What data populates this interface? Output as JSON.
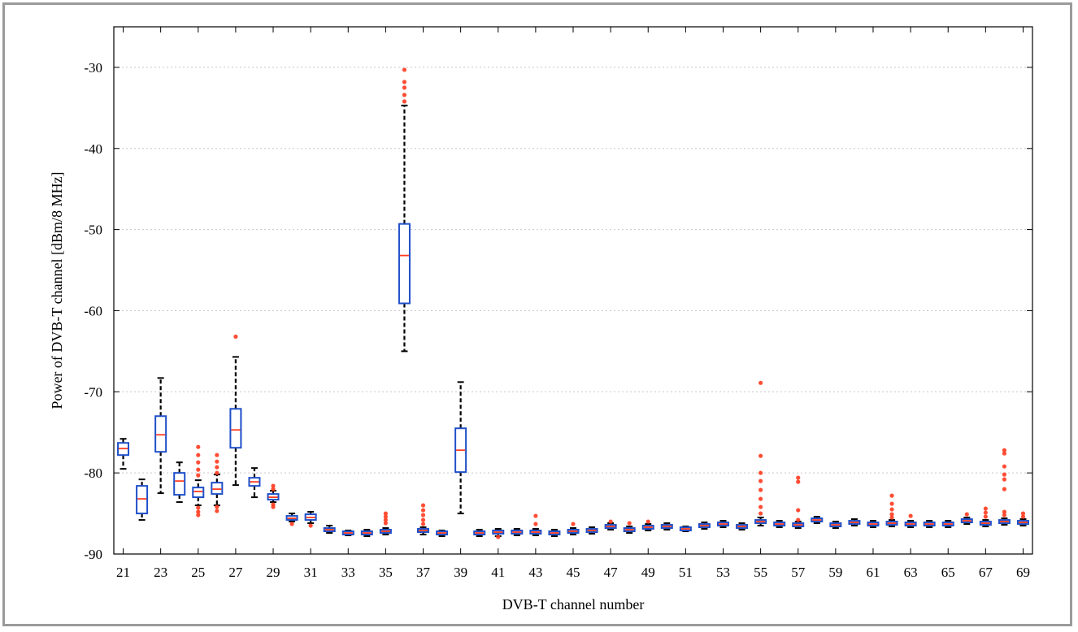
{
  "chart_data": {
    "type": "box",
    "xlabel": "DVB-T channel number",
    "ylabel": "Power of DVB-T channel [dBm/8 MHz]",
    "ylim": [
      -90,
      -25
    ],
    "xlim": [
      20.5,
      69.5
    ],
    "yticks": [
      -30,
      -40,
      -50,
      -60,
      -70,
      -80,
      -90
    ],
    "xticks": [
      21,
      23,
      25,
      27,
      29,
      31,
      33,
      35,
      37,
      39,
      41,
      43,
      45,
      47,
      49,
      51,
      53,
      55,
      57,
      59,
      61,
      63,
      65,
      67,
      69
    ],
    "grid": true,
    "colors": {
      "box": "#1f4fc8",
      "median": "#ff3b1f",
      "outlier": "#ff3b1f",
      "whisker": "#000000"
    },
    "boxes": [
      {
        "channel": 21,
        "q1": -77.8,
        "median": -77.0,
        "q3": -76.3,
        "wlo": -79.5,
        "whi": -75.8,
        "outliers": []
      },
      {
        "channel": 22,
        "q1": -85.0,
        "median": -83.2,
        "q3": -81.6,
        "wlo": -85.8,
        "whi": -80.8,
        "outliers": []
      },
      {
        "channel": 23,
        "q1": -77.4,
        "median": -75.3,
        "q3": -73.0,
        "wlo": -82.5,
        "whi": -68.3,
        "outliers": []
      },
      {
        "channel": 24,
        "q1": -82.7,
        "median": -81.0,
        "q3": -80.0,
        "wlo": -83.6,
        "whi": -78.7,
        "outliers": []
      },
      {
        "channel": 25,
        "q1": -83.0,
        "median": -82.3,
        "q3": -81.8,
        "wlo": -84.0,
        "whi": -80.9,
        "outliers": [
          -76.8,
          -77.8,
          -78.7,
          -79.6,
          -80.3,
          -84.3,
          -84.8,
          -85.2
        ]
      },
      {
        "channel": 26,
        "q1": -82.6,
        "median": -82.0,
        "q3": -81.2,
        "wlo": -84.0,
        "whi": -80.2,
        "outliers": [
          -77.8,
          -78.6,
          -79.3,
          -80.0,
          -84.2,
          -84.7
        ]
      },
      {
        "channel": 27,
        "q1": -76.9,
        "median": -74.7,
        "q3": -72.1,
        "wlo": -81.5,
        "whi": -65.7,
        "outliers": [
          -63.2
        ]
      },
      {
        "channel": 28,
        "q1": -81.6,
        "median": -81.1,
        "q3": -80.6,
        "wlo": -83.0,
        "whi": -79.4,
        "outliers": []
      },
      {
        "channel": 29,
        "q1": -83.3,
        "median": -83.0,
        "q3": -82.6,
        "wlo": -83.6,
        "whi": -82.2,
        "outliers": [
          -81.6,
          -82.0,
          -83.9,
          -84.2
        ]
      },
      {
        "channel": 30,
        "q1": -85.8,
        "median": -85.6,
        "q3": -85.3,
        "wlo": -86.0,
        "whi": -85.0,
        "outliers": [
          -86.3
        ]
      },
      {
        "channel": 31,
        "q1": -85.8,
        "median": -85.5,
        "q3": -85.1,
        "wlo": -86.2,
        "whi": -84.8,
        "outliers": [
          -86.5
        ]
      },
      {
        "channel": 32,
        "q1": -87.2,
        "median": -87.0,
        "q3": -86.8,
        "wlo": -87.4,
        "whi": -86.5,
        "outliers": []
      },
      {
        "channel": 33,
        "q1": -87.6,
        "median": -87.4,
        "q3": -87.2,
        "wlo": -87.7,
        "whi": -87.1,
        "outliers": []
      },
      {
        "channel": 34,
        "q1": -87.6,
        "median": -87.4,
        "q3": -87.2,
        "wlo": -87.8,
        "whi": -87.0,
        "outliers": []
      },
      {
        "channel": 35,
        "q1": -87.4,
        "median": -87.2,
        "q3": -87.0,
        "wlo": -87.6,
        "whi": -86.8,
        "outliers": [
          -85.0,
          -85.4,
          -85.8,
          -86.2
        ]
      },
      {
        "channel": 36,
        "q1": -59.1,
        "median": -53.2,
        "q3": -49.3,
        "wlo": -65.0,
        "whi": -34.7,
        "outliers": [
          -30.3,
          -31.8,
          -32.5,
          -33.4,
          -34.2
        ]
      },
      {
        "channel": 37,
        "q1": -87.3,
        "median": -87.1,
        "q3": -86.9,
        "wlo": -87.6,
        "whi": -86.7,
        "outliers": [
          -84.0,
          -84.6,
          -85.2,
          -85.8,
          -86.3
        ]
      },
      {
        "channel": 38,
        "q1": -87.6,
        "median": -87.4,
        "q3": -87.2,
        "wlo": -87.8,
        "whi": -87.1,
        "outliers": []
      },
      {
        "channel": 39,
        "q1": -79.9,
        "median": -77.2,
        "q3": -74.5,
        "wlo": -85.0,
        "whi": -68.8,
        "outliers": []
      },
      {
        "channel": 40,
        "q1": -87.6,
        "median": -87.4,
        "q3": -87.2,
        "wlo": -87.8,
        "whi": -87.0,
        "outliers": []
      },
      {
        "channel": 41,
        "q1": -87.5,
        "median": -87.3,
        "q3": -87.1,
        "wlo": -87.8,
        "whi": -86.9,
        "outliers": [
          -87.9
        ]
      },
      {
        "channel": 42,
        "q1": -87.5,
        "median": -87.3,
        "q3": -87.1,
        "wlo": -87.7,
        "whi": -86.9,
        "outliers": []
      },
      {
        "channel": 43,
        "q1": -87.5,
        "median": -87.3,
        "q3": -87.1,
        "wlo": -87.7,
        "whi": -86.9,
        "outliers": [
          -85.3,
          -86.3
        ]
      },
      {
        "channel": 44,
        "q1": -87.6,
        "median": -87.4,
        "q3": -87.2,
        "wlo": -87.8,
        "whi": -87.0,
        "outliers": []
      },
      {
        "channel": 45,
        "q1": -87.4,
        "median": -87.2,
        "q3": -87.0,
        "wlo": -87.6,
        "whi": -86.8,
        "outliers": [
          -86.3
        ]
      },
      {
        "channel": 46,
        "q1": -87.3,
        "median": -87.1,
        "q3": -86.9,
        "wlo": -87.5,
        "whi": -86.7,
        "outliers": []
      },
      {
        "channel": 47,
        "q1": -86.8,
        "median": -86.6,
        "q3": -86.4,
        "wlo": -87.0,
        "whi": -86.2,
        "outliers": [
          -86.0
        ]
      },
      {
        "channel": 48,
        "q1": -87.2,
        "median": -87.0,
        "q3": -86.8,
        "wlo": -87.4,
        "whi": -86.6,
        "outliers": [
          -86.2
        ]
      },
      {
        "channel": 49,
        "q1": -86.9,
        "median": -86.7,
        "q3": -86.5,
        "wlo": -87.1,
        "whi": -86.3,
        "outliers": [
          -86.0
        ]
      },
      {
        "channel": 50,
        "q1": -86.8,
        "median": -86.6,
        "q3": -86.4,
        "wlo": -87.0,
        "whi": -86.2,
        "outliers": []
      },
      {
        "channel": 51,
        "q1": -87.1,
        "median": -86.9,
        "q3": -86.7,
        "wlo": -87.2,
        "whi": -86.6,
        "outliers": []
      },
      {
        "channel": 52,
        "q1": -86.7,
        "median": -86.5,
        "q3": -86.3,
        "wlo": -86.9,
        "whi": -86.1,
        "outliers": []
      },
      {
        "channel": 53,
        "q1": -86.5,
        "median": -86.3,
        "q3": -86.1,
        "wlo": -86.7,
        "whi": -85.9,
        "outliers": []
      },
      {
        "channel": 54,
        "q1": -86.8,
        "median": -86.6,
        "q3": -86.4,
        "wlo": -87.0,
        "whi": -86.2,
        "outliers": []
      },
      {
        "channel": 55,
        "q1": -86.2,
        "median": -86.0,
        "q3": -85.8,
        "wlo": -86.5,
        "whi": -85.5,
        "outliers": [
          -68.9,
          -77.9,
          -80.0,
          -81.0,
          -82.1,
          -83.2,
          -84.2,
          -85.0
        ]
      },
      {
        "channel": 56,
        "q1": -86.5,
        "median": -86.3,
        "q3": -86.1,
        "wlo": -86.7,
        "whi": -85.9,
        "outliers": []
      },
      {
        "channel": 57,
        "q1": -86.6,
        "median": -86.4,
        "q3": -86.2,
        "wlo": -86.8,
        "whi": -86.0,
        "outliers": [
          -80.6,
          -81.1,
          -84.6,
          -85.8
        ]
      },
      {
        "channel": 58,
        "q1": -86.0,
        "median": -85.8,
        "q3": -85.6,
        "wlo": -86.2,
        "whi": -85.4,
        "outliers": []
      },
      {
        "channel": 59,
        "q1": -86.6,
        "median": -86.4,
        "q3": -86.2,
        "wlo": -86.8,
        "whi": -86.0,
        "outliers": []
      },
      {
        "channel": 60,
        "q1": -86.3,
        "median": -86.1,
        "q3": -85.9,
        "wlo": -86.5,
        "whi": -85.7,
        "outliers": []
      },
      {
        "channel": 61,
        "q1": -86.5,
        "median": -86.3,
        "q3": -86.1,
        "wlo": -86.7,
        "whi": -85.9,
        "outliers": []
      },
      {
        "channel": 62,
        "q1": -86.4,
        "median": -86.2,
        "q3": -86.0,
        "wlo": -86.6,
        "whi": -85.8,
        "outliers": [
          -82.8,
          -83.8,
          -84.5,
          -85.1,
          -85.5
        ]
      },
      {
        "channel": 63,
        "q1": -86.5,
        "median": -86.3,
        "q3": -86.1,
        "wlo": -86.7,
        "whi": -85.9,
        "outliers": [
          -85.3
        ]
      },
      {
        "channel": 64,
        "q1": -86.5,
        "median": -86.3,
        "q3": -86.1,
        "wlo": -86.7,
        "whi": -85.9,
        "outliers": []
      },
      {
        "channel": 65,
        "q1": -86.5,
        "median": -86.3,
        "q3": -86.1,
        "wlo": -86.7,
        "whi": -85.9,
        "outliers": []
      },
      {
        "channel": 66,
        "q1": -86.1,
        "median": -85.9,
        "q3": -85.7,
        "wlo": -86.3,
        "whi": -85.5,
        "outliers": [
          -85.1
        ]
      },
      {
        "channel": 67,
        "q1": -86.4,
        "median": -86.2,
        "q3": -86.0,
        "wlo": -86.6,
        "whi": -85.8,
        "outliers": [
          -84.4,
          -84.9,
          -85.4
        ]
      },
      {
        "channel": 68,
        "q1": -86.2,
        "median": -86.0,
        "q3": -85.8,
        "wlo": -86.4,
        "whi": -85.6,
        "outliers": [
          -77.2,
          -77.6,
          -79.2,
          -80.2,
          -80.8,
          -82.0,
          -84.8,
          -85.2
        ]
      },
      {
        "channel": 69,
        "q1": -86.3,
        "median": -86.1,
        "q3": -85.9,
        "wlo": -86.5,
        "whi": -85.7,
        "outliers": [
          -85.0,
          -85.4
        ]
      }
    ]
  }
}
